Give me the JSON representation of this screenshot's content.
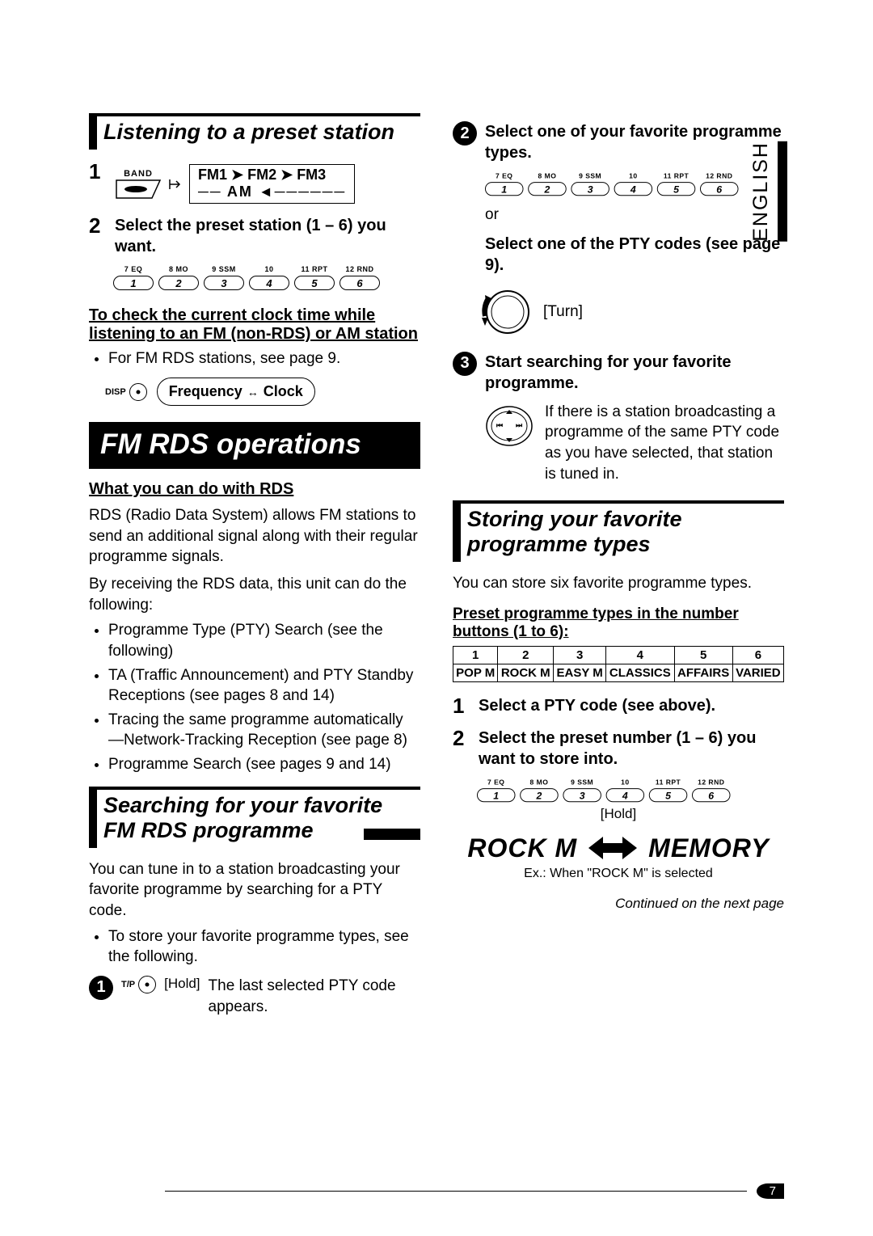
{
  "lang_tab": "ENGLISH",
  "page_number": "7",
  "continued": "Continued on the next page",
  "left": {
    "listen": {
      "title": "Listening to a preset station",
      "step2": "Select the preset station (1 – 6) you want.",
      "band_name": "BAND",
      "fm1": "FM1",
      "fm2": "FM2",
      "fm3": "FM3",
      "am": "AM",
      "check_title1": "To check the current clock time while",
      "check_title2": "listening to an FM (non-RDS) or AM station",
      "check_bullet": "For FM RDS stations, see page 9.",
      "disp": "DISP",
      "freq": "Frequency",
      "clock": "Clock"
    },
    "rds_block": "FM RDS operations",
    "rds": {
      "what_h": "What you can do with RDS",
      "p1": "RDS (Radio Data System) allows FM stations to send an additional signal along with their regular programme signals.",
      "p2": "By receiving the RDS data, this unit can do the following:",
      "b1": "Programme Type (PTY) Search (see the following)",
      "b2": "TA (Traffic Announcement) and PTY Standby Receptions (see pages 8 and 14)",
      "b3": "Tracing the same programme automatically —Network-Tracking Reception (see page 8)",
      "b4": "Programme Search (see pages 9 and 14)"
    },
    "search": {
      "title1": "Searching for your favorite",
      "title2": "FM RDS programme",
      "p1": "You can tune in to a station broadcasting your favorite programme by searching for a PTY code.",
      "b1": "To store your favorite programme types, see the following.",
      "tp": "T/P",
      "hold": "[Hold]",
      "tp_text": "The last selected PTY code appears."
    }
  },
  "right": {
    "s2": "Select one of your favorite programme types.",
    "or": "or",
    "s2b": "Select one of the PTY codes (see page 9).",
    "turn": "[Turn]",
    "s3": "Start searching for your favorite programme.",
    "s3_text": "If there is a station broadcasting a programme of the same PTY code as you have selected, that station is tuned in.",
    "store": {
      "title": "Storing your favorite programme types",
      "p1": "You can store six favorite programme types.",
      "preset_h": "Preset programme types in the number buttons (1 to 6):",
      "s1": "Select a PTY code (see above).",
      "s2": "Select the preset number (1 – 6) you want to store into.",
      "hold": "[Hold]",
      "rock": "ROCK M",
      "mem": "MEMORY",
      "ex": "Ex.: When \"ROCK M\" is selected"
    }
  },
  "preset_labels": [
    "7  EQ",
    "8  MO",
    "9  SSM",
    "10",
    "11  RPT",
    "12  RND"
  ],
  "preset_nums": [
    "1",
    "2",
    "3",
    "4",
    "5",
    "6"
  ],
  "pty_table": {
    "head": [
      "1",
      "2",
      "3",
      "4",
      "5",
      "6"
    ],
    "row": [
      "POP M",
      "ROCK M",
      "EASY M",
      "CLASSICS",
      "AFFAIRS",
      "VARIED"
    ]
  }
}
